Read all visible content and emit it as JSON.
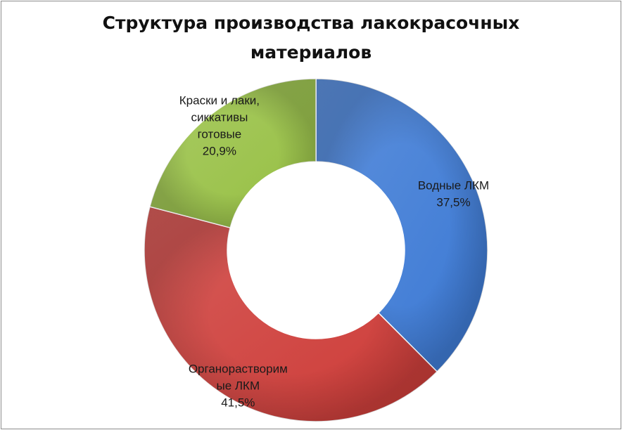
{
  "chart_data": {
    "type": "pie",
    "variant": "donut",
    "title_lines": [
      "Структура производства лакокрасочных",
      "материалов"
    ],
    "slices": [
      {
        "label_lines": [
          "Водные ЛКМ"
        ],
        "value": 37.5,
        "value_text": "37,5%",
        "color": "#3a78d4"
      },
      {
        "label_lines": [
          "Органорастворим",
          "ые ЛКМ"
        ],
        "value": 41.5,
        "value_text": "41,5%",
        "color": "#cd3a36"
      },
      {
        "label_lines": [
          "Краски и лаки,",
          "сиккативы",
          "готовые"
        ],
        "value": 20.9,
        "value_text": "20,9%",
        "color": "#96bf42"
      }
    ],
    "start_angle_deg": 0,
    "direction": "clockwise",
    "legend": "none"
  }
}
